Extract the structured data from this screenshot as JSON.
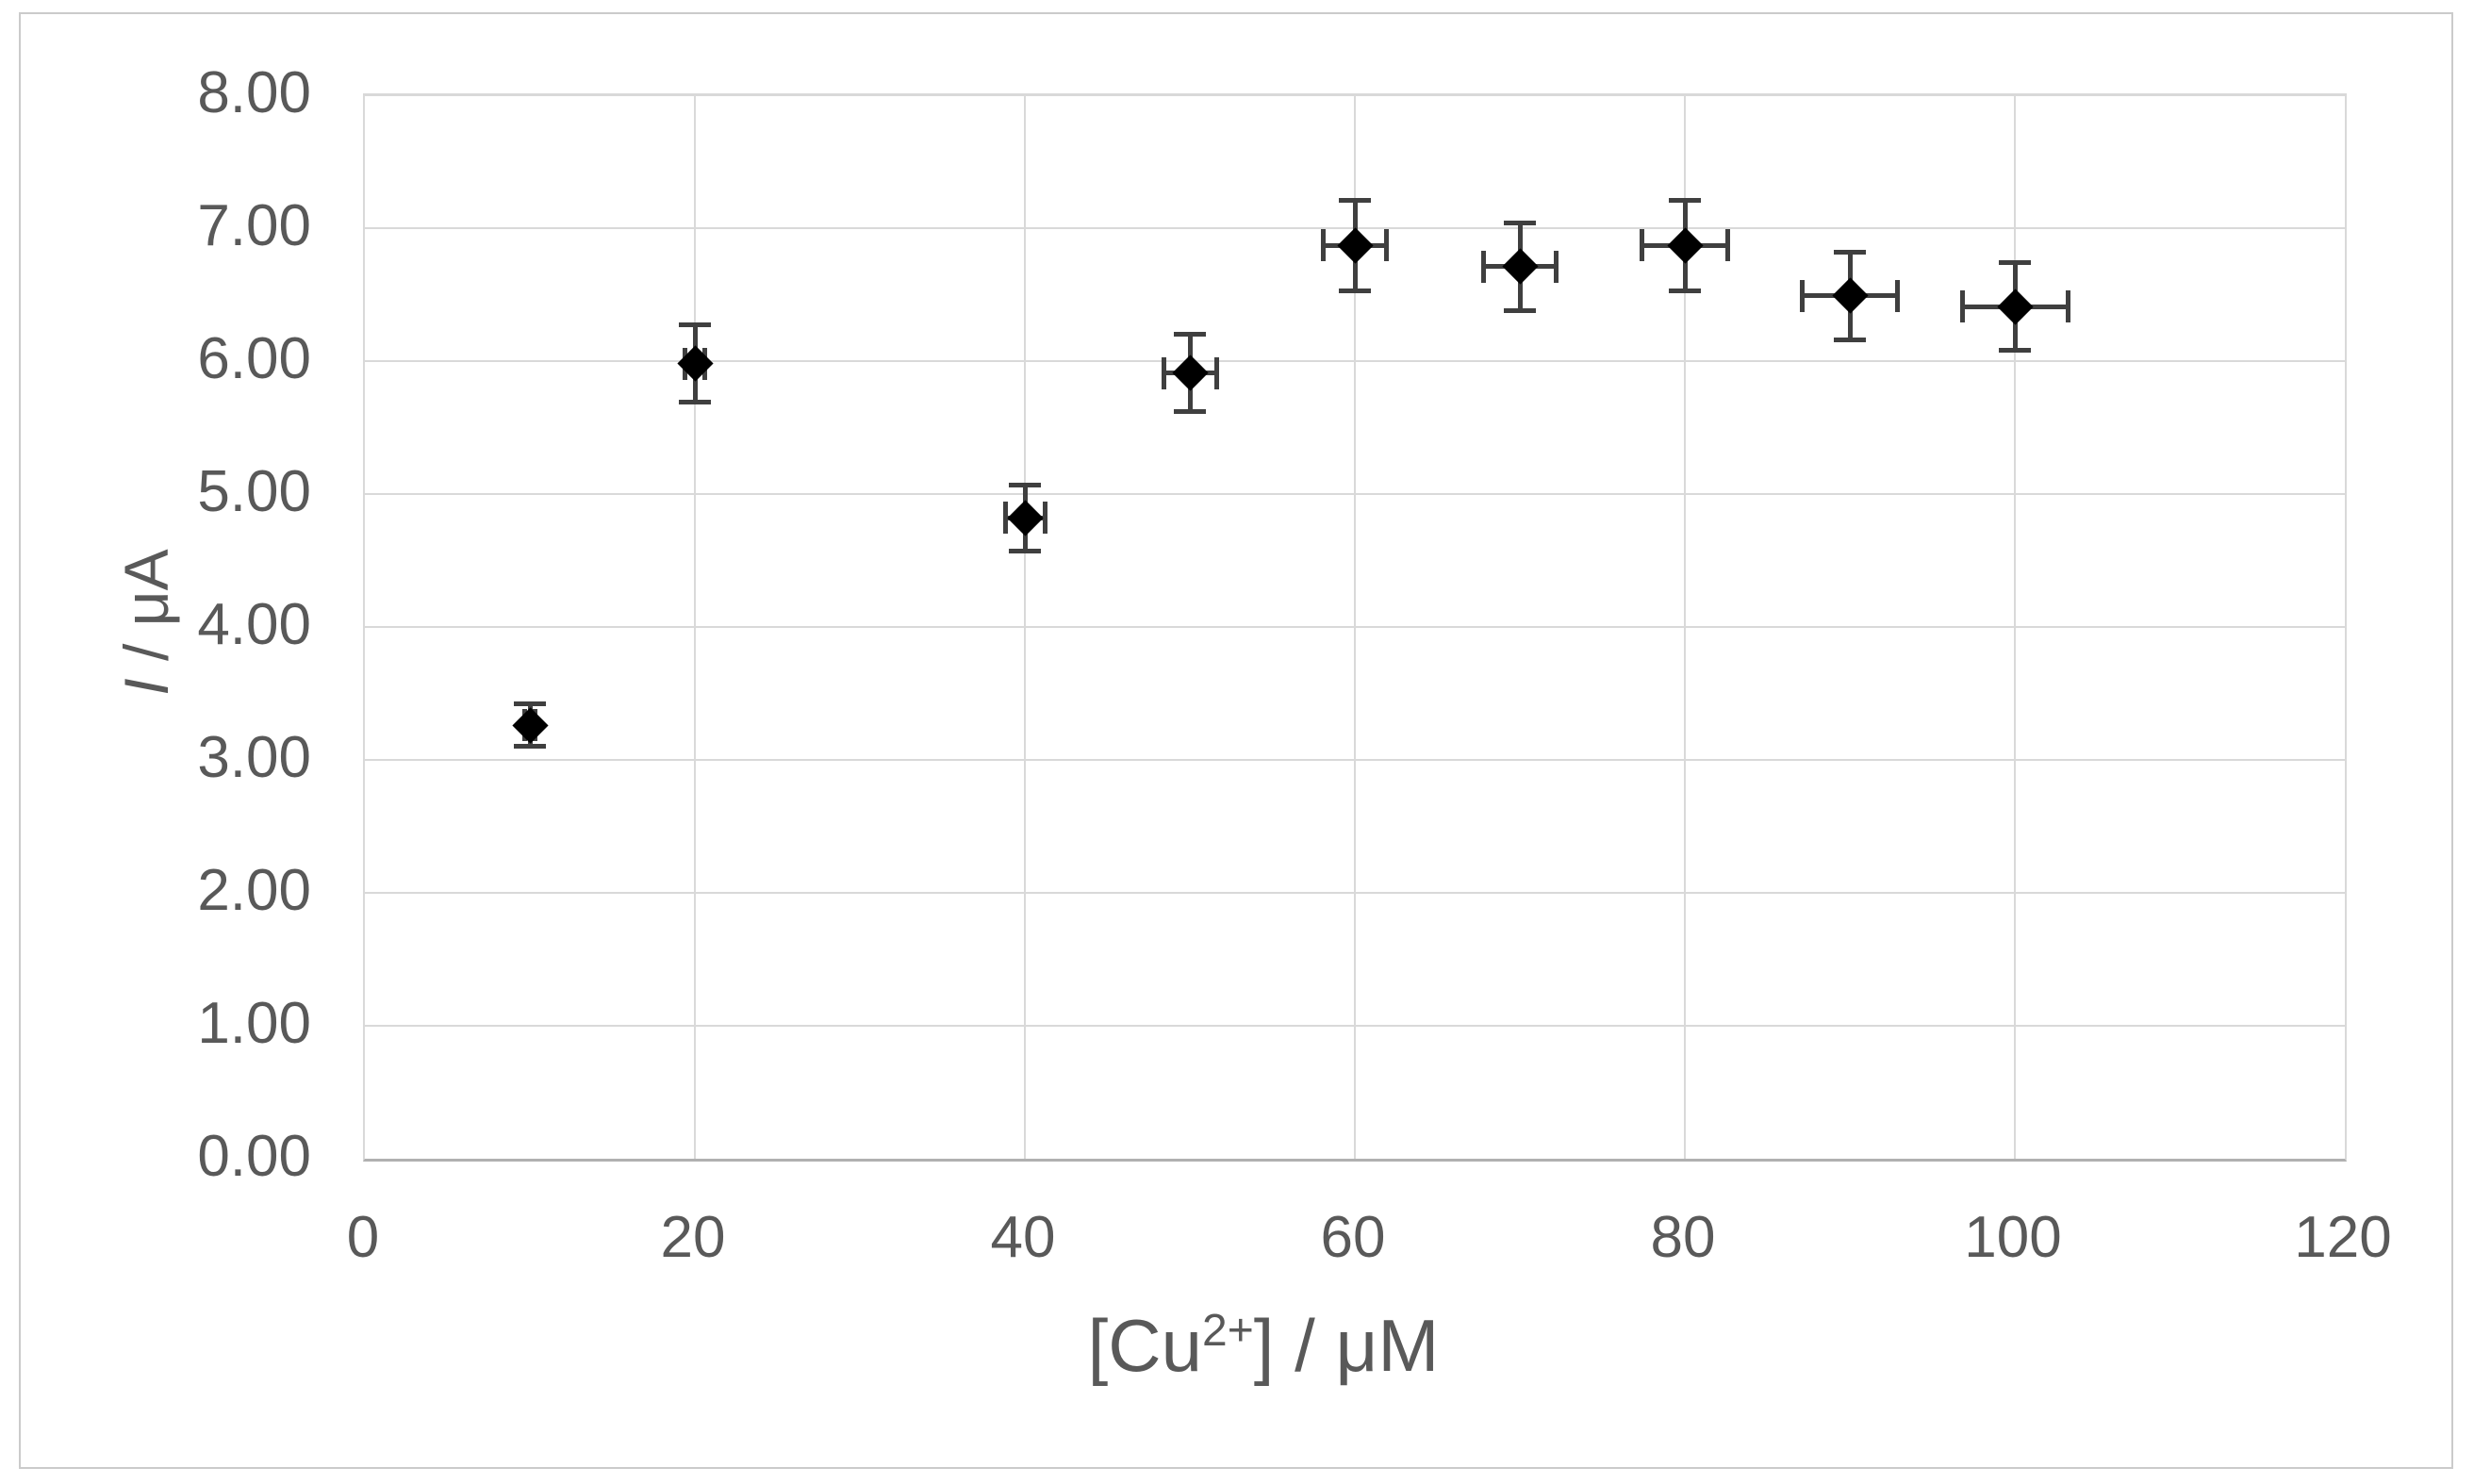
{
  "chart_data": {
    "type": "scatter",
    "title": "",
    "xlabel": "[Cu²⁺] / μM",
    "ylabel": "I / μA",
    "x": [
      10,
      20,
      40,
      50,
      60,
      70,
      80,
      90,
      100
    ],
    "y": [
      3.26,
      5.98,
      4.82,
      5.91,
      6.87,
      6.71,
      6.87,
      6.49,
      6.41
    ],
    "y_err": [
      0.16,
      0.29,
      0.25,
      0.29,
      0.34,
      0.33,
      0.34,
      0.33,
      0.33
    ],
    "x_err": [
      0.3,
      0.6,
      1.2,
      1.6,
      1.9,
      2.2,
      2.6,
      2.9,
      3.2
    ],
    "xlim": [
      0,
      120
    ],
    "ylim": [
      0,
      8
    ],
    "x_ticks": [
      0,
      20,
      40,
      60,
      80,
      100,
      120
    ],
    "x_tick_labels": [
      "0",
      "20",
      "40",
      "60",
      "80",
      "100",
      "120"
    ],
    "y_ticks": [
      0,
      1,
      2,
      3,
      4,
      5,
      6,
      7,
      8
    ],
    "y_tick_labels": [
      "0.00",
      "1.00",
      "2.00",
      "3.00",
      "4.00",
      "5.00",
      "6.00",
      "7.00",
      "8.00"
    ],
    "grid": true,
    "legend": false,
    "marker": "diamond",
    "colors": {
      "marker": "#000000",
      "error_bar": "#3f3f3f",
      "gridline": "#d9d9d9",
      "axis_line": "#b0b0b0",
      "tick_text": "#595959",
      "chart_border": "#cbcbcb",
      "background": "#ffffff"
    }
  },
  "axis_titles": {
    "x_prefix": "[Cu",
    "x_sup": "2+",
    "x_suffix": "] / μM",
    "y_italic": "I",
    "y_rest": " / μA"
  }
}
